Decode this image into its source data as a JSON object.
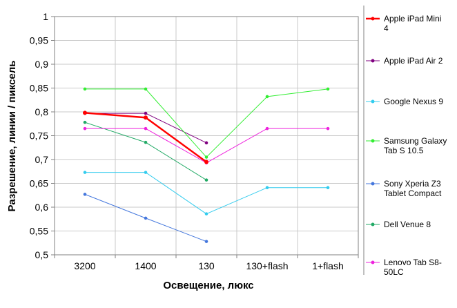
{
  "chart_data": {
    "type": "line",
    "title": "",
    "xlabel": "Освещение,  люкс",
    "ylabel": "Разрешение,  линии / пиксель",
    "categories": [
      "3200",
      "1400",
      "130",
      "130+flash",
      "1+flash"
    ],
    "ylim": [
      0.5,
      1
    ],
    "yticks": [
      "0,5",
      "0,55",
      "0,6",
      "0,65",
      "0,7",
      "0,75",
      "0,8",
      "0,85",
      "0,9",
      "0,95",
      "1"
    ],
    "grid": true,
    "legend_position": "right",
    "series": [
      {
        "name": "Apple iPad Mini 4",
        "color": "#ff0000",
        "emphasis": true,
        "values": [
          0.798,
          0.788,
          0.695,
          null,
          null
        ]
      },
      {
        "name": "Apple iPad Air 2",
        "color": "#800080",
        "values": [
          0.797,
          0.797,
          0.735,
          null,
          null
        ]
      },
      {
        "name": "Google Nexus 9",
        "color": "#33ccee",
        "values": [
          0.673,
          0.673,
          0.586,
          0.641,
          0.641
        ]
      },
      {
        "name": "Samsung Galaxy Tab S 10.5",
        "color": "#33ee33",
        "values": [
          0.848,
          0.848,
          0.705,
          0.832,
          0.848
        ]
      },
      {
        "name": "Sony Xperia Z3 Tablet Compact",
        "color": "#4477dd",
        "values": [
          0.627,
          0.577,
          0.528,
          null,
          null
        ]
      },
      {
        "name": "Dell Venue 8",
        "color": "#22aa66",
        "values": [
          0.778,
          0.736,
          0.657,
          null,
          null
        ]
      },
      {
        "name": "Lenovo Tab S8-50LC",
        "color": "#ee22dd",
        "values": [
          0.765,
          0.765,
          0.693,
          0.765,
          0.765
        ]
      }
    ]
  },
  "legend_lines": [
    [
      "Apple iPad Mini",
      "4"
    ],
    [
      "Apple iPad Air 2"
    ],
    [
      "Google Nexus 9"
    ],
    [
      "Samsung Galaxy",
      "Tab S 10.5"
    ],
    [
      "Sony Xperia Z3",
      "Tablet Compact"
    ],
    [
      "Dell Venue 8"
    ],
    [
      "Lenovo Tab S8-",
      "50LC"
    ]
  ]
}
